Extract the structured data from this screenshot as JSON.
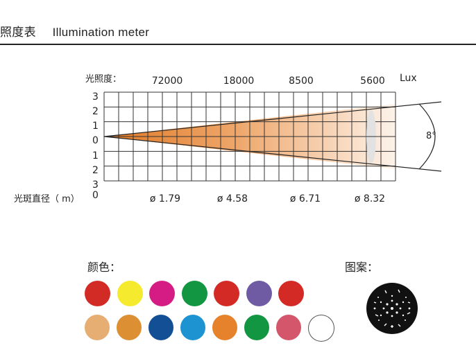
{
  "header": {
    "title_cn": "照度表",
    "title_en": "Illumination meter"
  },
  "illuminance": {
    "label": "光照度：",
    "unit": "Lux",
    "values": [
      "72000",
      "18000",
      "8500",
      "5600"
    ]
  },
  "spot": {
    "label": "光斑直径（ m）",
    "values": [
      "ø 1.79",
      "ø 4.58",
      "ø 6.71",
      "ø 8.32"
    ]
  },
  "distance_ticks": [
    "3",
    "2",
    "1",
    "0",
    "1",
    "2",
    "3",
    "0"
  ],
  "beam_angle": "8°",
  "colors": {
    "label": "颜色：",
    "row1": [
      "#d22b26",
      "#f5ea2e",
      "#d51c84",
      "#139642",
      "#d42a26",
      "#6e5ba4",
      "#d42a26"
    ],
    "row2": [
      "#e6ae72",
      "#dc9033",
      "#134f95",
      "#1d93d2",
      "#e6822b",
      "#139642",
      "#d4566a",
      "#ffffff"
    ]
  },
  "gobo": {
    "label": "图案：",
    "icon": "gobo-pattern-icon"
  }
}
